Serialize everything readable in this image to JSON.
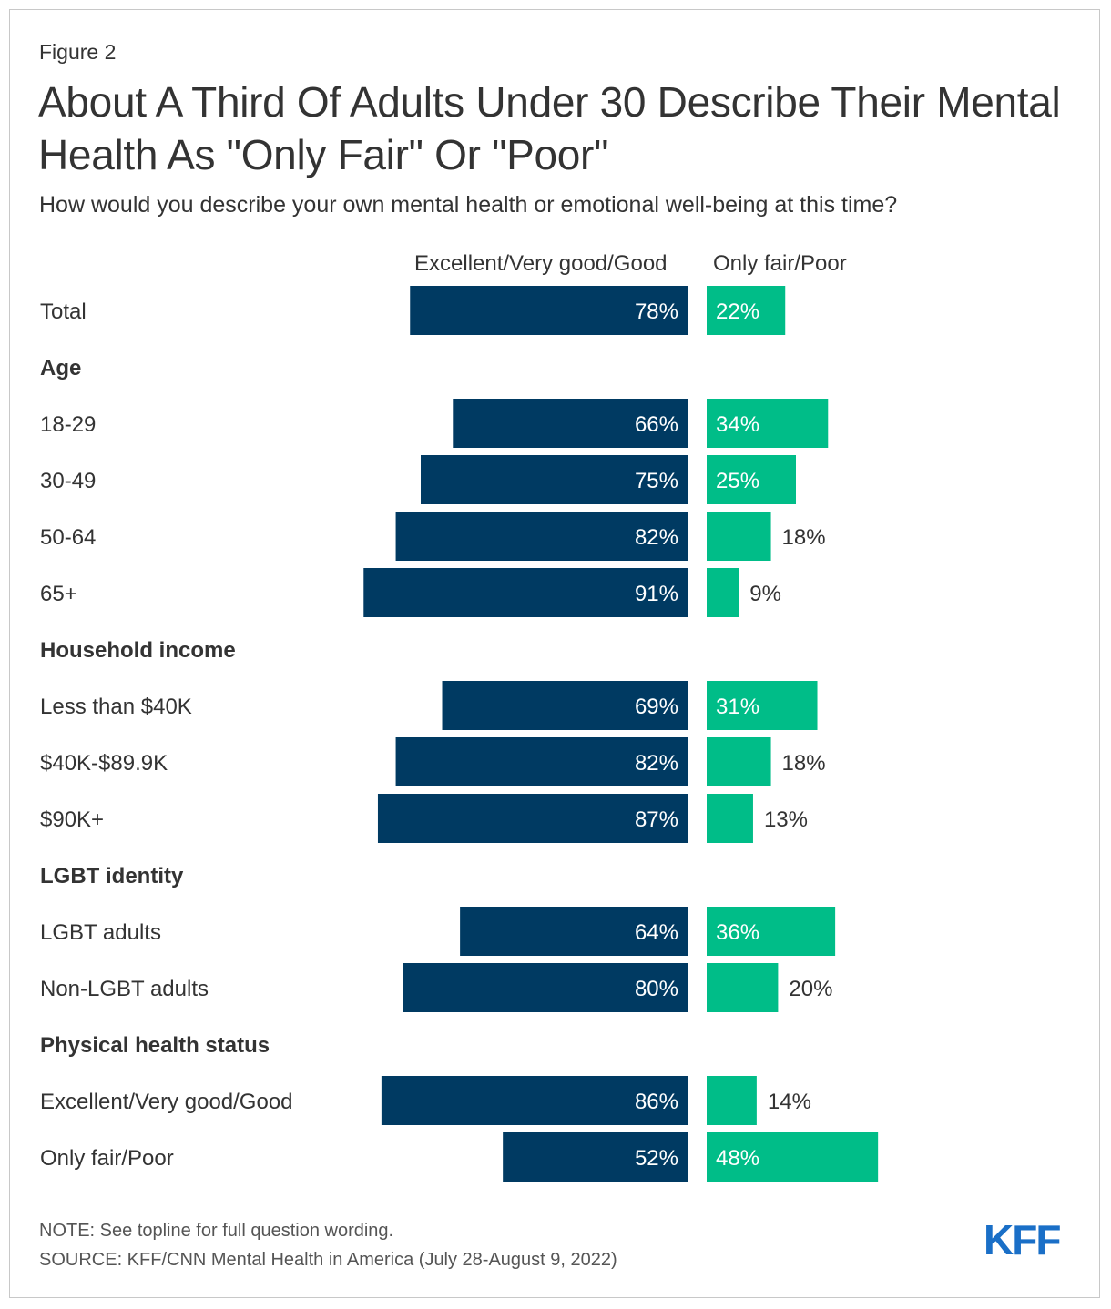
{
  "figure_label": "Figure 2",
  "title": "About A Third Of Adults Under 30 Describe Their Mental Health As \"Only Fair\" Or \"Poor\"",
  "subtitle": "How would you describe your own mental health or emotional well-being at this time?",
  "note": "NOTE: See topline for full question wording.",
  "source": "SOURCE: KFF/CNN Mental Health in America (July 28-August 9, 2022)",
  "logo_text": "KFF",
  "colors": {
    "good": "#003a62",
    "poor": "#00bd88",
    "logo": "#1a6fc7"
  },
  "chart_data": {
    "type": "bar",
    "orientation": "horizontal-diverging",
    "title": "About A Third Of Adults Under 30 Describe Their Mental Health As \"Only Fair\" Or \"Poor\"",
    "series": [
      {
        "name": "Excellent/Very good/Good",
        "color": "#003a62"
      },
      {
        "name": "Only fair/Poor",
        "color": "#00bd88"
      }
    ],
    "unit": "%",
    "rows": [
      {
        "kind": "row",
        "label": "Total",
        "good": 78,
        "poor": 22
      },
      {
        "kind": "header",
        "label": "Age"
      },
      {
        "kind": "row",
        "label": "18-29",
        "good": 66,
        "poor": 34
      },
      {
        "kind": "row",
        "label": "30-49",
        "good": 75,
        "poor": 25
      },
      {
        "kind": "row",
        "label": "50-64",
        "good": 82,
        "poor": 18
      },
      {
        "kind": "row",
        "label": "65+",
        "good": 91,
        "poor": 9
      },
      {
        "kind": "header",
        "label": "Household income"
      },
      {
        "kind": "row",
        "label": "Less than $40K",
        "good": 69,
        "poor": 31
      },
      {
        "kind": "row",
        "label": "$40K-$89.9K",
        "good": 82,
        "poor": 18
      },
      {
        "kind": "row",
        "label": "$90K+",
        "good": 87,
        "poor": 13
      },
      {
        "kind": "header",
        "label": "LGBT identity"
      },
      {
        "kind": "row",
        "label": "LGBT adults",
        "good": 64,
        "poor": 36
      },
      {
        "kind": "row",
        "label": "Non-LGBT adults",
        "good": 80,
        "poor": 20
      },
      {
        "kind": "header",
        "label": "Physical health status"
      },
      {
        "kind": "row",
        "label": "Excellent/Very good/Good",
        "good": 86,
        "poor": 14
      },
      {
        "kind": "row",
        "label": "Only fair/Poor",
        "good": 52,
        "poor": 48
      }
    ]
  }
}
